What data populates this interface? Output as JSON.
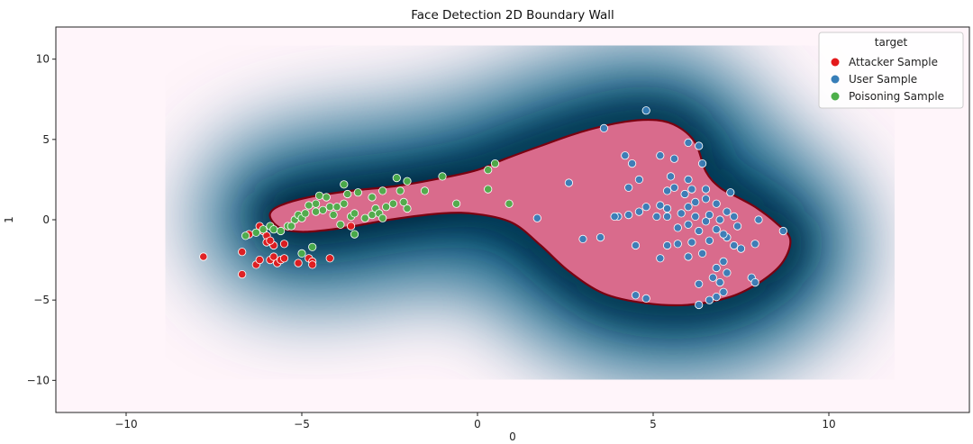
{
  "chart_data": {
    "type": "scatter",
    "title": "Face Detection 2D Boundary Wall",
    "xlabel": "0",
    "ylabel": "1",
    "xlim": [
      -12,
      14
    ],
    "ylim": [
      -12,
      12
    ],
    "xticks": [
      -10,
      -5,
      0,
      5,
      10
    ],
    "yticks": [
      -10,
      -5,
      0,
      5,
      10
    ],
    "xtick_labels": [
      "−10",
      "−5",
      "0",
      "5",
      "10"
    ],
    "ytick_labels": [
      "−10",
      "−5",
      "0",
      "5",
      "10"
    ],
    "grid": false,
    "legend": {
      "title": "target",
      "placement": "top-right"
    },
    "background": {
      "description_colors": {
        "low": "#fff5fa",
        "high": "#02587f",
        "peak": "#011f30"
      }
    },
    "boundary": {
      "fill": "#d96b8c",
      "edge": "#7a0010",
      "points": [
        [
          -5.8,
          -0.2
        ],
        [
          -5.9,
          0.4
        ],
        [
          -5.6,
          0.9
        ],
        [
          -4.8,
          1.4
        ],
        [
          -3.6,
          1.8
        ],
        [
          -2.3,
          2.1
        ],
        [
          -1.0,
          2.6
        ],
        [
          0.0,
          3.1
        ],
        [
          0.8,
          3.8
        ],
        [
          1.8,
          4.6
        ],
        [
          3.0,
          5.5
        ],
        [
          4.2,
          6.1
        ],
        [
          5.1,
          6.2
        ],
        [
          5.7,
          5.8
        ],
        [
          6.2,
          4.8
        ],
        [
          6.5,
          3.0
        ],
        [
          6.9,
          2.0
        ],
        [
          7.4,
          1.4
        ],
        [
          7.9,
          0.8
        ],
        [
          8.5,
          -0.2
        ],
        [
          8.9,
          -1.2
        ],
        [
          8.7,
          -2.6
        ],
        [
          8.1,
          -3.8
        ],
        [
          7.2,
          -4.8
        ],
        [
          6.0,
          -5.3
        ],
        [
          4.8,
          -5.2
        ],
        [
          3.6,
          -4.6
        ],
        [
          2.6,
          -3.2
        ],
        [
          1.8,
          -1.6
        ],
        [
          1.0,
          -0.2
        ],
        [
          0.0,
          0.35
        ],
        [
          -1.0,
          0.4
        ],
        [
          -2.5,
          0.0
        ],
        [
          -3.8,
          -0.5
        ],
        [
          -4.9,
          -0.75
        ],
        [
          -5.5,
          -0.6
        ]
      ]
    },
    "series": [
      {
        "name": "Attacker Sample",
        "color": "#e41a1c",
        "points": [
          [
            -7.8,
            -2.3
          ],
          [
            -6.7,
            -2.0
          ],
          [
            -6.7,
            -3.4
          ],
          [
            -6.3,
            -2.8
          ],
          [
            -6.2,
            -2.5
          ],
          [
            -6.2,
            -0.4
          ],
          [
            -6.1,
            -0.7
          ],
          [
            -6.0,
            -1.0
          ],
          [
            -6.0,
            -1.4
          ],
          [
            -5.9,
            -2.5
          ],
          [
            -5.8,
            -2.3
          ],
          [
            -5.8,
            -1.6
          ],
          [
            -5.7,
            -2.7
          ],
          [
            -5.6,
            -2.5
          ],
          [
            -5.5,
            -2.4
          ],
          [
            -5.5,
            -1.5
          ],
          [
            -5.1,
            -2.7
          ],
          [
            -4.8,
            -2.4
          ],
          [
            -4.7,
            -2.6
          ],
          [
            -4.7,
            -2.8
          ],
          [
            -4.2,
            -2.4
          ],
          [
            -3.6,
            -0.4
          ],
          [
            -6.5,
            -0.9
          ],
          [
            -5.9,
            -1.3
          ]
        ]
      },
      {
        "name": "User Sample",
        "color": "#377eb8",
        "points": [
          [
            4.8,
            6.8
          ],
          [
            3.6,
            5.7
          ],
          [
            6.0,
            4.8
          ],
          [
            6.3,
            4.6
          ],
          [
            4.2,
            4.0
          ],
          [
            5.2,
            4.0
          ],
          [
            5.6,
            3.8
          ],
          [
            4.4,
            3.5
          ],
          [
            6.4,
            3.5
          ],
          [
            2.6,
            2.3
          ],
          [
            4.6,
            2.5
          ],
          [
            5.5,
            2.7
          ],
          [
            6.0,
            2.5
          ],
          [
            4.3,
            2.0
          ],
          [
            5.4,
            1.8
          ],
          [
            5.9,
            1.6
          ],
          [
            6.5,
            1.9
          ],
          [
            7.2,
            1.7
          ],
          [
            6.2,
            1.1
          ],
          [
            6.5,
            1.3
          ],
          [
            6.8,
            1.0
          ],
          [
            6.0,
            0.8
          ],
          [
            5.4,
            0.7
          ],
          [
            4.8,
            0.8
          ],
          [
            4.6,
            0.5
          ],
          [
            4.3,
            0.3
          ],
          [
            4.0,
            0.2
          ],
          [
            3.9,
            0.2
          ],
          [
            5.1,
            0.2
          ],
          [
            5.4,
            0.2
          ],
          [
            5.8,
            0.4
          ],
          [
            6.2,
            0.2
          ],
          [
            6.6,
            0.3
          ],
          [
            7.1,
            0.5
          ],
          [
            7.3,
            0.2
          ],
          [
            6.9,
            0.0
          ],
          [
            6.5,
            -0.1
          ],
          [
            6.0,
            -0.3
          ],
          [
            5.7,
            -0.5
          ],
          [
            6.3,
            -0.7
          ],
          [
            6.8,
            -0.6
          ],
          [
            7.4,
            -0.4
          ],
          [
            8.0,
            0.0
          ],
          [
            8.7,
            -0.7
          ],
          [
            7.1,
            -1.1
          ],
          [
            6.6,
            -1.3
          ],
          [
            6.1,
            -1.4
          ],
          [
            5.7,
            -1.5
          ],
          [
            5.4,
            -1.6
          ],
          [
            4.5,
            -1.6
          ],
          [
            3.5,
            -1.1
          ],
          [
            3.0,
            -1.2
          ],
          [
            7.3,
            -1.6
          ],
          [
            7.5,
            -1.8
          ],
          [
            7.9,
            -1.5
          ],
          [
            6.4,
            -2.1
          ],
          [
            6.0,
            -2.3
          ],
          [
            5.2,
            -2.4
          ],
          [
            7.0,
            -2.6
          ],
          [
            6.8,
            -3.0
          ],
          [
            7.1,
            -3.3
          ],
          [
            6.7,
            -3.6
          ],
          [
            6.9,
            -3.9
          ],
          [
            7.8,
            -3.6
          ],
          [
            7.9,
            -3.9
          ],
          [
            6.3,
            -4.0
          ],
          [
            7.0,
            -4.5
          ],
          [
            6.8,
            -4.8
          ],
          [
            4.5,
            -4.7
          ],
          [
            4.8,
            -4.9
          ],
          [
            6.3,
            -5.3
          ],
          [
            6.6,
            -5.0
          ],
          [
            1.7,
            0.1
          ],
          [
            5.6,
            2.0
          ],
          [
            6.1,
            1.9
          ],
          [
            5.2,
            0.9
          ],
          [
            7.0,
            -0.9
          ]
        ]
      },
      {
        "name": "Poisoning Sample",
        "color": "#4daf4a",
        "points": [
          [
            -6.6,
            -1.0
          ],
          [
            -6.3,
            -0.8
          ],
          [
            -6.1,
            -0.6
          ],
          [
            -5.9,
            -0.4
          ],
          [
            -5.8,
            -0.6
          ],
          [
            -5.6,
            -0.7
          ],
          [
            -5.4,
            -0.4
          ],
          [
            -5.2,
            0.0
          ],
          [
            -5.1,
            0.3
          ],
          [
            -5.0,
            0.1
          ],
          [
            -4.9,
            0.4
          ],
          [
            -4.6,
            0.5
          ],
          [
            -4.6,
            1.0
          ],
          [
            -4.5,
            1.5
          ],
          [
            -4.3,
            1.4
          ],
          [
            -4.2,
            0.8
          ],
          [
            -4.1,
            0.3
          ],
          [
            -4.0,
            0.8
          ],
          [
            -3.8,
            1.0
          ],
          [
            -3.8,
            2.2
          ],
          [
            -3.7,
            1.6
          ],
          [
            -3.6,
            0.2
          ],
          [
            -3.5,
            0.4
          ],
          [
            -3.4,
            1.7
          ],
          [
            -3.2,
            0.1
          ],
          [
            -3.0,
            0.3
          ],
          [
            -3.0,
            1.4
          ],
          [
            -2.9,
            0.7
          ],
          [
            -2.8,
            0.4
          ],
          [
            -2.7,
            1.8
          ],
          [
            -2.6,
            0.8
          ],
          [
            -2.4,
            1.0
          ],
          [
            -2.3,
            2.6
          ],
          [
            -2.2,
            1.8
          ],
          [
            -2.0,
            2.4
          ],
          [
            -2.0,
            0.7
          ],
          [
            -1.5,
            1.8
          ],
          [
            -1.0,
            2.7
          ],
          [
            -0.6,
            1.0
          ],
          [
            0.3,
            3.1
          ],
          [
            0.3,
            1.9
          ],
          [
            0.5,
            3.5
          ],
          [
            0.9,
            1.0
          ],
          [
            -5.0,
            -2.1
          ],
          [
            -4.7,
            -1.7
          ],
          [
            -5.3,
            -0.4
          ],
          [
            -4.8,
            0.9
          ],
          [
            -3.5,
            -0.9
          ],
          [
            -2.7,
            0.1
          ],
          [
            -2.1,
            1.1
          ],
          [
            -4.4,
            0.6
          ],
          [
            -3.9,
            -0.3
          ]
        ]
      }
    ]
  }
}
